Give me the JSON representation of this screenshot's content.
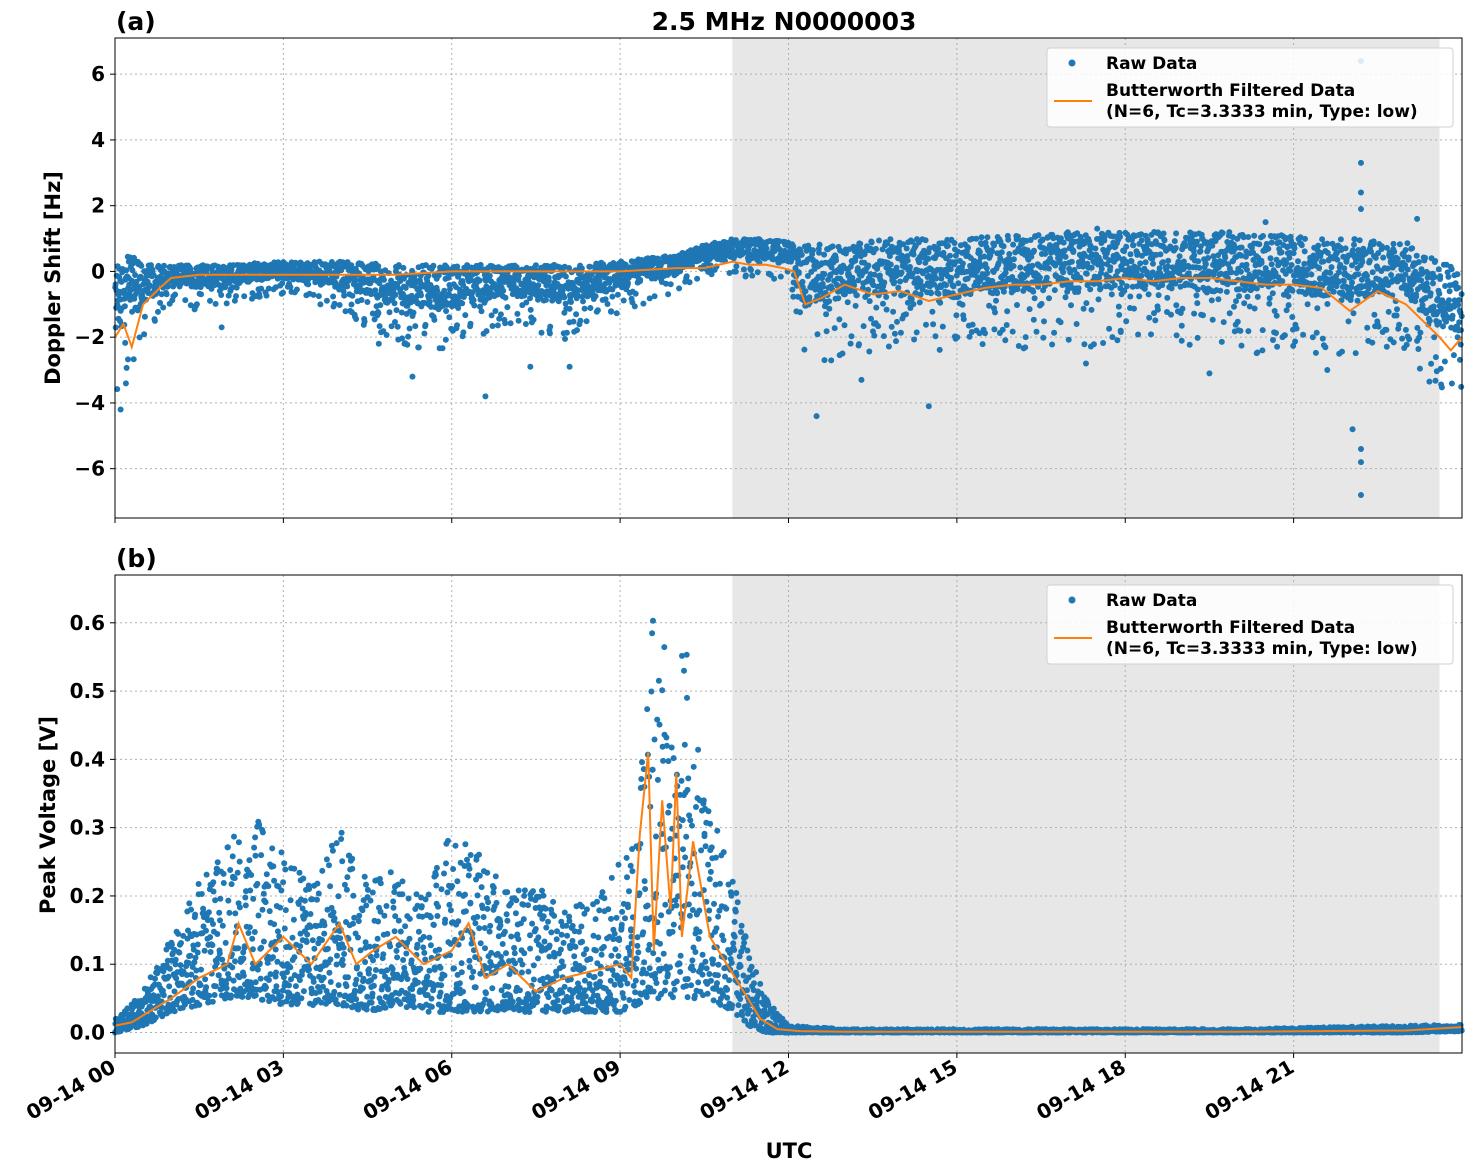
{
  "figure": {
    "title": "2.5 MHz N0000003"
  },
  "chart_data": [
    {
      "type": "scatter",
      "panel_label": "(a)",
      "title": "2.5 MHz N0000003",
      "xlabel": "",
      "ylabel": "Doppler Shift [Hz]",
      "xlim": [
        "09-14 00:00",
        "09-14 24:00"
      ],
      "ylim": [
        -7.5,
        7.1
      ],
      "yticks": [
        -6,
        -4,
        -2,
        0,
        2,
        4,
        6
      ],
      "ytick_labels": [
        "−6",
        "−4",
        "−2",
        "0",
        "2",
        "4",
        "6"
      ],
      "grid": true,
      "legend_position": "top-right",
      "shaded_region": {
        "from": "09-14 11:00",
        "to": "09-14 23:36",
        "color": "#e7e7e7"
      },
      "series": [
        {
          "name": "Raw Data",
          "kind": "points",
          "color": "#1f77b4",
          "x_hours": [
            0,
            0.3,
            0.6,
            1,
            1.5,
            2,
            3,
            4,
            5,
            6,
            7,
            8,
            9,
            10,
            10.5,
            11,
            11.5,
            12,
            12.3,
            13,
            14,
            15,
            16,
            17,
            18,
            19,
            20,
            21,
            22,
            23,
            23.5,
            24
          ],
          "y_upper": [
            0.3,
            0.5,
            0.2,
            0.2,
            0.2,
            0.2,
            0.3,
            0.3,
            0.2,
            0.2,
            0.2,
            0.2,
            0.3,
            0.5,
            0.8,
            1.0,
            1.0,
            0.9,
            0.8,
            0.9,
            1.0,
            1.0,
            1.1,
            1.2,
            1.2,
            1.2,
            1.2,
            1.1,
            1.0,
            0.9,
            0.4,
            0.0
          ],
          "y_lower": [
            -4.0,
            -3.5,
            -1.8,
            -1.0,
            -1.2,
            -1.0,
            -0.7,
            -1.2,
            -2.2,
            -2.5,
            -1.6,
            -2.2,
            -1.3,
            -0.6,
            -0.1,
            -0.2,
            -0.2,
            -0.3,
            -3.0,
            -2.6,
            -2.4,
            -2.6,
            -2.4,
            -2.3,
            -2.3,
            -2.3,
            -2.5,
            -2.5,
            -2.6,
            -2.4,
            -3.6,
            -3.9
          ],
          "outliers": [
            [
              0.1,
              -4.2
            ],
            [
              1.9,
              -1.7
            ],
            [
              4.7,
              -2.2
            ],
            [
              5.3,
              -3.2
            ],
            [
              6.6,
              -3.8
            ],
            [
              7.4,
              -2.9
            ],
            [
              8.1,
              -2.9
            ],
            [
              12.5,
              -4.4
            ],
            [
              13.3,
              -3.3
            ],
            [
              14.5,
              -4.1
            ],
            [
              17.3,
              -2.8
            ],
            [
              19.5,
              -3.1
            ],
            [
              21.6,
              -3.0
            ],
            [
              22.05,
              -4.8
            ],
            [
              22.2,
              -5.8
            ],
            [
              22.2,
              -6.8
            ],
            [
              22.2,
              3.3
            ],
            [
              22.2,
              2.4
            ],
            [
              22.2,
              1.9
            ],
            [
              22.2,
              -5.4
            ],
            [
              22.2,
              6.4
            ],
            [
              23.2,
              1.6
            ],
            [
              17.5,
              1.3
            ],
            [
              20.5,
              1.5
            ]
          ]
        },
        {
          "name": "Butterworth Filtered Data\n(N=6, Tc=3.3333 min, Type: low)",
          "kind": "line",
          "color": "#ff7f0e",
          "x_hours": [
            0,
            0.15,
            0.3,
            0.5,
            0.8,
            1.0,
            1.5,
            2,
            3,
            4,
            5,
            6,
            7,
            8,
            9,
            10,
            10.5,
            11,
            11.3,
            11.6,
            11.9,
            12.1,
            12.3,
            12.6,
            13,
            13.5,
            14,
            14.5,
            15,
            15.5,
            16,
            16.5,
            17,
            17.5,
            18,
            18.5,
            19,
            19.5,
            20,
            20.5,
            21,
            21.5,
            22,
            22.5,
            23,
            23.3,
            23.6,
            23.8,
            24
          ],
          "y": [
            -2.0,
            -1.6,
            -2.3,
            -1.0,
            -0.5,
            -0.2,
            -0.1,
            -0.1,
            -0.1,
            -0.1,
            -0.1,
            0.0,
            0.0,
            0.0,
            0.0,
            0.1,
            0.1,
            0.3,
            0.2,
            0.2,
            0.1,
            0.0,
            -1.0,
            -0.8,
            -0.4,
            -0.7,
            -0.6,
            -0.9,
            -0.7,
            -0.5,
            -0.4,
            -0.4,
            -0.3,
            -0.3,
            -0.2,
            -0.3,
            -0.2,
            -0.2,
            -0.3,
            -0.4,
            -0.4,
            -0.5,
            -1.2,
            -0.6,
            -1.0,
            -1.5,
            -2.0,
            -2.4,
            -2.0
          ]
        }
      ]
    },
    {
      "type": "scatter",
      "panel_label": "(b)",
      "title": "",
      "xlabel": "UTC",
      "ylabel": "Peak Voltage [V]",
      "xlim": [
        "09-14 00:00",
        "09-14 24:00"
      ],
      "ylim": [
        -0.03,
        0.67
      ],
      "yticks": [
        0.0,
        0.1,
        0.2,
        0.3,
        0.4,
        0.5,
        0.6
      ],
      "ytick_labels": [
        "0.0",
        "0.1",
        "0.2",
        "0.3",
        "0.4",
        "0.5",
        "0.6"
      ],
      "xticks_hours": [
        0,
        3,
        6,
        9,
        12,
        15,
        18,
        21
      ],
      "xtick_labels": [
        "09-14 00",
        "09-14 03",
        "09-14 06",
        "09-14 09",
        "09-14 12",
        "09-14 15",
        "09-14 18",
        "09-14 21"
      ],
      "grid": true,
      "legend_position": "top-right",
      "shaded_region": {
        "from": "09-14 11:00",
        "to": "09-14 23:36",
        "color": "#e7e7e7"
      },
      "series": [
        {
          "name": "Raw Data",
          "kind": "points",
          "color": "#1f77b4",
          "x_hours": [
            0,
            0.5,
            1,
            1.5,
            2,
            2.5,
            3,
            3.5,
            4,
            4.5,
            5,
            5.5,
            6,
            6.5,
            7,
            7.5,
            8,
            8.5,
            9,
            9.3,
            9.6,
            9.9,
            10.2,
            10.5,
            10.8,
            11,
            11.3,
            11.6,
            12,
            13,
            16,
            20,
            23,
            24
          ],
          "y_upper": [
            0.02,
            0.06,
            0.14,
            0.22,
            0.28,
            0.32,
            0.26,
            0.22,
            0.3,
            0.22,
            0.24,
            0.2,
            0.3,
            0.26,
            0.21,
            0.22,
            0.18,
            0.2,
            0.25,
            0.3,
            0.64,
            0.55,
            0.57,
            0.35,
            0.28,
            0.23,
            0.12,
            0.05,
            0.01,
            0.005,
            0.005,
            0.005,
            0.01,
            0.012
          ],
          "y_lower": [
            0.0,
            0.01,
            0.03,
            0.04,
            0.05,
            0.05,
            0.04,
            0.04,
            0.04,
            0.03,
            0.04,
            0.03,
            0.03,
            0.03,
            0.03,
            0.03,
            0.03,
            0.03,
            0.03,
            0.04,
            0.05,
            0.05,
            0.05,
            0.05,
            0.04,
            0.03,
            0.01,
            0.0,
            0.0,
            0.0,
            0.0,
            0.0,
            0.0,
            0.002
          ]
        },
        {
          "name": "Butterworth Filtered Data\n(N=6, Tc=3.3333 min, Type: low)",
          "kind": "line",
          "color": "#ff7f0e",
          "x_hours": [
            0,
            0.3,
            0.6,
            1,
            1.5,
            2,
            2.2,
            2.5,
            3,
            3.5,
            4,
            4.3,
            4.6,
            5,
            5.5,
            6,
            6.3,
            6.6,
            7,
            7.5,
            8,
            8.5,
            9,
            9.2,
            9.35,
            9.5,
            9.6,
            9.75,
            9.9,
            10.0,
            10.1,
            10.3,
            10.6,
            10.9,
            11.2,
            11.5,
            11.8,
            12.2,
            13,
            16,
            20,
            23,
            24
          ],
          "y": [
            0.01,
            0.015,
            0.03,
            0.05,
            0.08,
            0.1,
            0.16,
            0.1,
            0.14,
            0.1,
            0.16,
            0.1,
            0.12,
            0.14,
            0.1,
            0.12,
            0.16,
            0.08,
            0.1,
            0.06,
            0.08,
            0.09,
            0.1,
            0.08,
            0.29,
            0.41,
            0.12,
            0.34,
            0.18,
            0.38,
            0.14,
            0.28,
            0.14,
            0.1,
            0.06,
            0.02,
            0.005,
            0.002,
            0.001,
            0.001,
            0.001,
            0.003,
            0.008
          ]
        }
      ]
    }
  ]
}
